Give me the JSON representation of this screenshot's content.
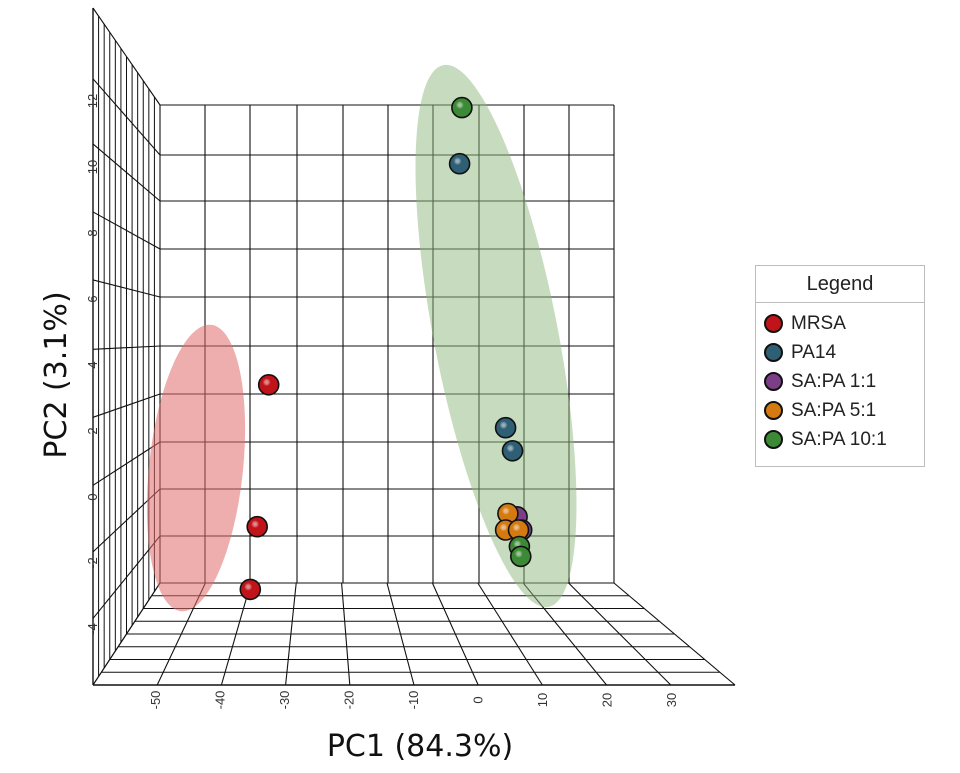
{
  "chart_data": {
    "type": "scatter",
    "subtype": "3d-pca",
    "xlabel": "PC1 (84.3%)",
    "ylabel": "PC2 (3.1%)",
    "x_ticks": [
      -50,
      -40,
      -30,
      -20,
      -10,
      0,
      10,
      20,
      30
    ],
    "y_ticks": [
      -4,
      -2,
      0,
      2,
      4,
      6,
      8,
      10,
      12
    ],
    "grid": true,
    "legend_title": "Legend",
    "legend_position": "right",
    "series": [
      {
        "name": "MRSA",
        "color": "#c0141a",
        "points": [
          [
            -45.5,
            3.4
          ],
          [
            -48,
            -0.9
          ],
          [
            -49.5,
            -2.8
          ]
        ]
      },
      {
        "name": "PA14",
        "color": "#2f5f75",
        "points": [
          [
            -4,
            10.1
          ],
          [
            6,
            2.1
          ],
          [
            7.5,
            1.4
          ]
        ]
      },
      {
        "name": "SA:PA 1:1",
        "color": "#7a3f86",
        "points": [
          [
            8.5,
            -0.6
          ],
          [
            9.5,
            -1.0
          ]
        ]
      },
      {
        "name": "SA:PA 5:1",
        "color": "#d47a10",
        "points": [
          [
            6.5,
            -0.5
          ],
          [
            6.0,
            -1.0
          ],
          [
            8.8,
            -1.0
          ]
        ]
      },
      {
        "name": "SA:PA 10:1",
        "color": "#3d8a36",
        "points": [
          [
            -3.5,
            11.8
          ],
          [
            9.0,
            -1.5
          ],
          [
            9.3,
            -1.8
          ]
        ]
      }
    ],
    "clusters": [
      {
        "color": "#e06b6b",
        "members": [
          "MRSA"
        ]
      },
      {
        "color": "#8fba7d",
        "members": [
          "PA14",
          "SA:PA 1:1",
          "SA:PA 5:1",
          "SA:PA 10:1"
        ]
      }
    ]
  }
}
